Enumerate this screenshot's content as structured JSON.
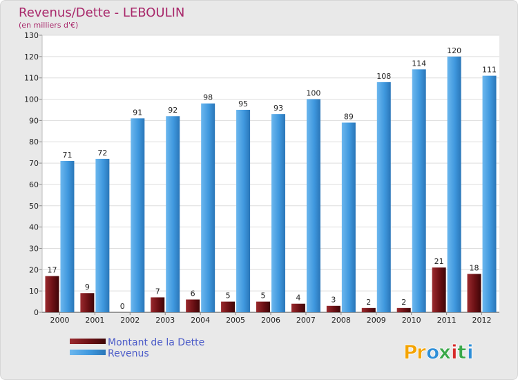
{
  "chart_data": {
    "type": "bar",
    "title": "Revenus/Dette - LEBOULIN",
    "subtitle": "(en milliers d'€)",
    "categories": [
      "2000",
      "2001",
      "2002",
      "2003",
      "2004",
      "2005",
      "2006",
      "2007",
      "2008",
      "2009",
      "2010",
      "2011",
      "2012"
    ],
    "series": [
      {
        "name": "Montant de la Dette",
        "color": "#6b1014",
        "values": [
          17,
          9,
          0,
          7,
          6,
          5,
          5,
          4,
          3,
          2,
          2,
          21,
          18
        ]
      },
      {
        "name": "Revenus",
        "color": "#3f98de",
        "values": [
          71,
          72,
          91,
          92,
          98,
          95,
          93,
          100,
          89,
          108,
          114,
          120,
          111
        ]
      }
    ],
    "ylim": [
      0,
      130
    ],
    "yticks": [
      0,
      10,
      20,
      30,
      40,
      50,
      60,
      70,
      80,
      90,
      100,
      110,
      120,
      130
    ],
    "grid": true,
    "legend": "bottom-left"
  },
  "branding": {
    "logo_text": "Proxiti"
  }
}
